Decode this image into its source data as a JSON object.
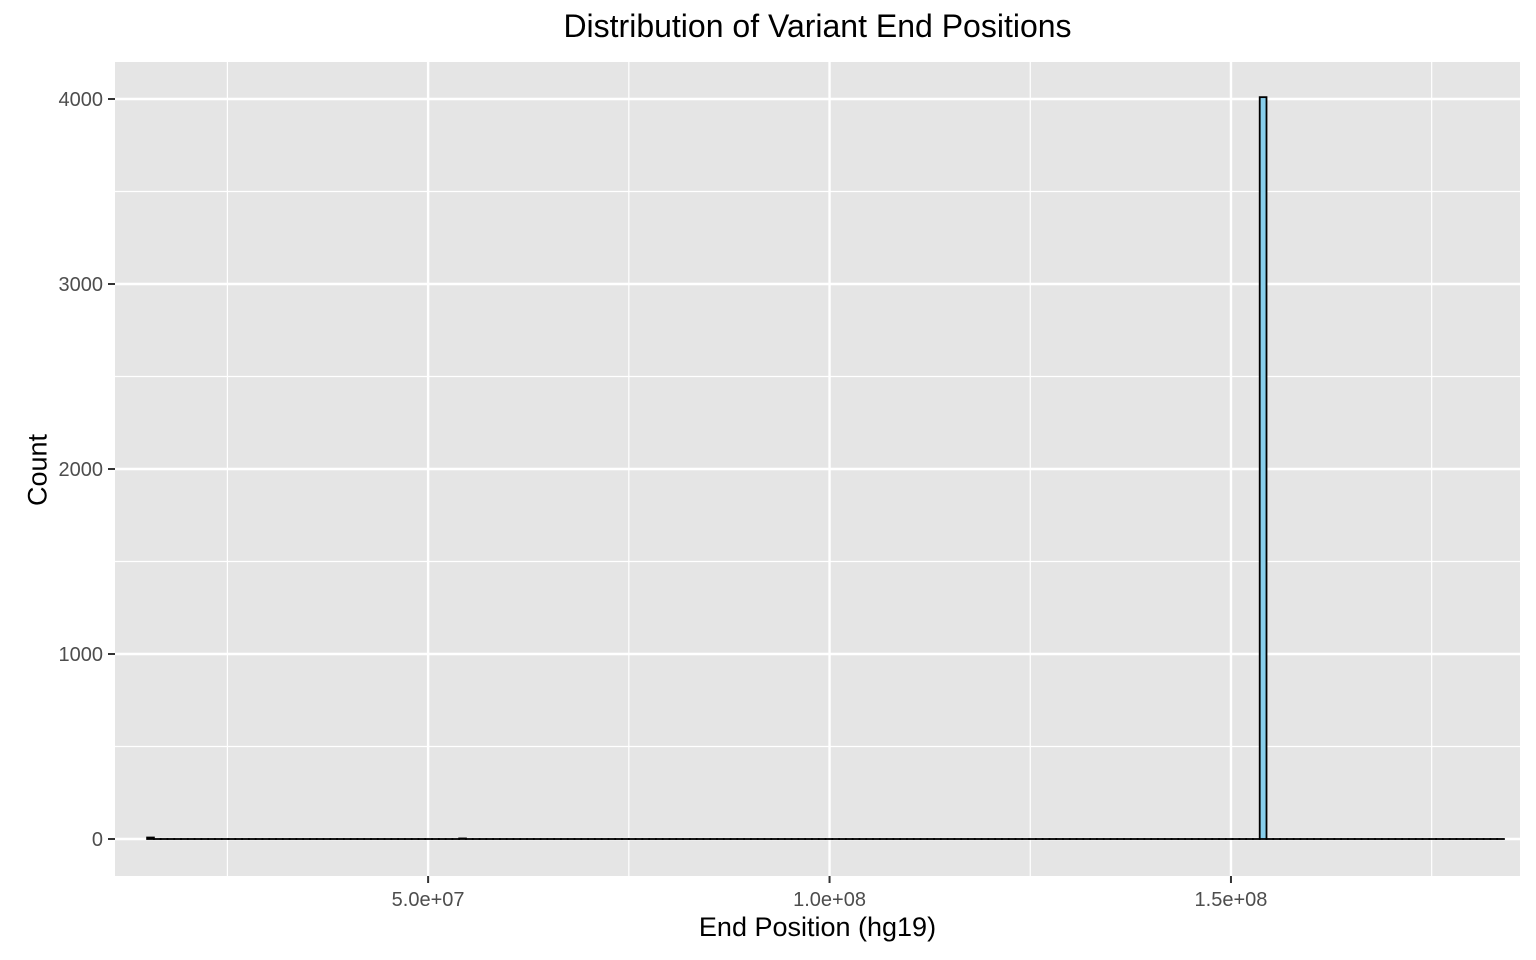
{
  "chart_data": {
    "type": "bar",
    "title": "Distribution of Variant End Positions",
    "xlabel": "End Position (hg19)",
    "ylabel": "Count",
    "xlim": [
      11000000,
      186000000
    ],
    "ylim": [
      -200,
      4200
    ],
    "x_ticks": [
      {
        "value": 50000000,
        "label": "5.0e+07"
      },
      {
        "value": 100000000,
        "label": "1.0e+08"
      },
      {
        "value": 150000000,
        "label": "1.5e+08"
      }
    ],
    "y_ticks": [
      {
        "value": 0,
        "label": "0"
      },
      {
        "value": 1000,
        "label": "1000"
      },
      {
        "value": 2000,
        "label": "2000"
      },
      {
        "value": 3000,
        "label": "3000"
      },
      {
        "value": 4000,
        "label": "4000"
      }
    ],
    "bin_range": [
      15000000,
      184000000
    ],
    "bin_width": 845000,
    "nonzero_bins": [
      {
        "x_start": 15000000,
        "count": 8
      },
      {
        "x_start": 54000000,
        "count": 3
      },
      {
        "x_start": 153400000,
        "count": 4010
      }
    ],
    "grid": true,
    "fill_color": "#87ceeb",
    "outline_color": "#000000",
    "panel_color": "#e5e5e5",
    "grid_color": "#ffffff"
  }
}
